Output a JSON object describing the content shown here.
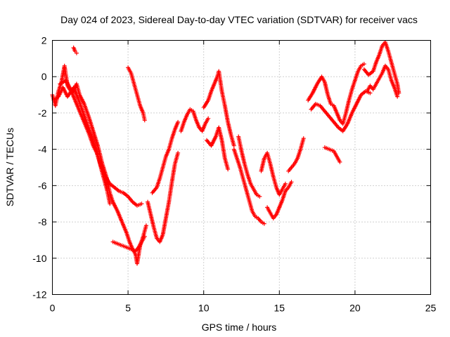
{
  "chart_data": {
    "type": "scatter",
    "title": "Day 024 of 2023, Sidereal Day-to-day VTEC variation (SDTVAR) for receiver vacs",
    "xlabel": "GPS time / hours",
    "ylabel": "SDTVAR / TECUs",
    "xlim": [
      0,
      25
    ],
    "ylim": [
      -12,
      2
    ],
    "grid": true,
    "x_ticks": [
      0,
      5,
      10,
      15,
      20,
      25
    ],
    "y_ticks": [
      -12,
      -10,
      -8,
      -6,
      -4,
      -2,
      0,
      2
    ],
    "marker": "+",
    "color": "#ff0000",
    "series": [
      {
        "name": "main-a",
        "points": [
          [
            0.0,
            -1.0
          ],
          [
            0.2,
            -1.6
          ],
          [
            0.4,
            -0.8
          ],
          [
            0.6,
            -0.3
          ],
          [
            0.8,
            0.6
          ],
          [
            1.0,
            -0.5
          ],
          [
            1.3,
            -0.9
          ],
          [
            1.6,
            -0.4
          ],
          [
            1.8,
            -1.0
          ],
          [
            2.1,
            -1.5
          ],
          [
            2.4,
            -2.2
          ],
          [
            2.7,
            -3.0
          ],
          [
            3.0,
            -3.8
          ],
          [
            3.3,
            -4.8
          ],
          [
            3.6,
            -5.6
          ],
          [
            3.8,
            -6.4
          ],
          [
            4.0,
            -6.9
          ],
          [
            4.3,
            -7.4
          ],
          [
            4.6,
            -8.0
          ],
          [
            4.9,
            -8.6
          ],
          [
            5.1,
            -9.1
          ],
          [
            5.3,
            -9.5
          ],
          [
            5.5,
            -9.8
          ],
          [
            5.6,
            -10.3
          ],
          [
            5.8,
            -9.3
          ],
          [
            6.0,
            -8.8
          ],
          [
            6.2,
            -8.2
          ]
        ]
      },
      {
        "name": "main-b",
        "points": [
          [
            0.1,
            -1.3
          ],
          [
            0.4,
            -1.1
          ],
          [
            0.7,
            -0.6
          ],
          [
            1.0,
            -1.1
          ],
          [
            1.4,
            -0.6
          ],
          [
            1.7,
            -1.2
          ],
          [
            2.0,
            -1.9
          ],
          [
            2.3,
            -2.6
          ],
          [
            2.6,
            -3.3
          ],
          [
            2.9,
            -4.1
          ],
          [
            3.2,
            -4.9
          ],
          [
            3.5,
            -5.5
          ],
          [
            3.8,
            -5.9
          ],
          [
            4.1,
            -6.1
          ],
          [
            4.4,
            -6.3
          ],
          [
            4.7,
            -6.4
          ],
          [
            5.0,
            -6.6
          ],
          [
            5.3,
            -6.9
          ],
          [
            5.6,
            -7.1
          ],
          [
            5.9,
            -7.0
          ]
        ]
      },
      {
        "name": "early-b",
        "points": [
          [
            0.5,
            -0.4
          ],
          [
            0.9,
            -0.2
          ],
          [
            1.2,
            -0.7
          ],
          [
            1.5,
            -1.3
          ],
          [
            1.8,
            -1.9
          ],
          [
            2.1,
            -2.5
          ],
          [
            2.4,
            -3.1
          ],
          [
            2.7,
            -3.8
          ],
          [
            3.0,
            -4.3
          ],
          [
            3.3,
            -5.3
          ],
          [
            3.6,
            -6.2
          ],
          [
            3.8,
            -7.0
          ]
        ]
      },
      {
        "name": "blip",
        "points": [
          [
            1.4,
            1.6
          ],
          [
            1.5,
            1.4
          ],
          [
            1.6,
            1.3
          ]
        ]
      },
      {
        "name": "seg-5h",
        "points": [
          [
            5.0,
            0.5
          ],
          [
            5.2,
            0.2
          ],
          [
            5.4,
            -0.4
          ],
          [
            5.6,
            -1.0
          ],
          [
            5.8,
            -1.6
          ],
          [
            6.0,
            -2.0
          ],
          [
            6.1,
            -2.4
          ]
        ]
      },
      {
        "name": "seg-9h",
        "points": [
          [
            4.0,
            -9.1
          ],
          [
            4.3,
            -9.2
          ],
          [
            4.6,
            -9.3
          ],
          [
            4.9,
            -9.4
          ],
          [
            5.2,
            -9.5
          ],
          [
            5.5,
            -9.6
          ],
          [
            5.7,
            -9.4
          ],
          [
            5.9,
            -9.1
          ],
          [
            6.1,
            -8.8
          ]
        ]
      },
      {
        "name": "valley-1",
        "points": [
          [
            6.3,
            -6.9
          ],
          [
            6.5,
            -7.6
          ],
          [
            6.7,
            -8.3
          ],
          [
            6.9,
            -8.9
          ],
          [
            7.1,
            -9.1
          ],
          [
            7.3,
            -8.7
          ],
          [
            7.5,
            -7.8
          ],
          [
            7.7,
            -6.9
          ],
          [
            7.9,
            -5.8
          ],
          [
            8.1,
            -4.8
          ],
          [
            8.3,
            -4.2
          ]
        ]
      },
      {
        "name": "valley-2",
        "points": [
          [
            6.6,
            -6.4
          ],
          [
            6.9,
            -6.1
          ],
          [
            7.1,
            -5.6
          ],
          [
            7.3,
            -5.0
          ],
          [
            7.5,
            -4.4
          ],
          [
            7.7,
            -4.0
          ],
          [
            7.9,
            -3.4
          ],
          [
            8.1,
            -2.9
          ],
          [
            8.3,
            -2.5
          ]
        ]
      },
      {
        "name": "hump-8h",
        "points": [
          [
            8.5,
            -3.0
          ],
          [
            8.7,
            -2.5
          ],
          [
            8.9,
            -2.1
          ],
          [
            9.1,
            -1.8
          ],
          [
            9.3,
            -1.9
          ],
          [
            9.5,
            -2.4
          ],
          [
            9.7,
            -2.8
          ],
          [
            9.9,
            -3.0
          ],
          [
            10.1,
            -2.6
          ],
          [
            10.3,
            -2.3
          ]
        ]
      },
      {
        "name": "ridge-10h",
        "points": [
          [
            10.0,
            -1.7
          ],
          [
            10.3,
            -1.3
          ],
          [
            10.5,
            -0.8
          ],
          [
            10.7,
            -0.4
          ],
          [
            10.9,
            0.0
          ],
          [
            11.0,
            0.3
          ],
          [
            11.2,
            -0.8
          ],
          [
            11.4,
            -1.6
          ],
          [
            11.6,
            -2.5
          ],
          [
            11.8,
            -3.2
          ],
          [
            12.0,
            -3.8
          ]
        ]
      },
      {
        "name": "ridge-10h-low",
        "points": [
          [
            10.2,
            -3.5
          ],
          [
            10.5,
            -3.8
          ],
          [
            10.8,
            -3.3
          ],
          [
            11.0,
            -2.8
          ],
          [
            11.2,
            -3.5
          ],
          [
            11.4,
            -4.5
          ],
          [
            11.6,
            -5.1
          ]
        ]
      },
      {
        "name": "drop-12h",
        "points": [
          [
            12.0,
            -4.0
          ],
          [
            12.2,
            -4.5
          ],
          [
            12.4,
            -5.0
          ],
          [
            12.6,
            -5.6
          ],
          [
            12.8,
            -6.2
          ],
          [
            13.0,
            -6.8
          ],
          [
            13.2,
            -7.4
          ],
          [
            13.4,
            -7.7
          ],
          [
            13.6,
            -7.8
          ],
          [
            13.8,
            -8.0
          ],
          [
            14.0,
            -8.1
          ]
        ]
      },
      {
        "name": "drop-12h-b",
        "points": [
          [
            12.3,
            -3.3
          ],
          [
            12.5,
            -4.1
          ],
          [
            12.7,
            -4.8
          ],
          [
            12.9,
            -5.4
          ],
          [
            13.1,
            -5.9
          ],
          [
            13.3,
            -6.2
          ],
          [
            13.5,
            -6.5
          ],
          [
            13.7,
            -6.6
          ]
        ]
      },
      {
        "name": "bowl-14h",
        "points": [
          [
            13.8,
            -5.2
          ],
          [
            14.0,
            -4.5
          ],
          [
            14.2,
            -4.2
          ],
          [
            14.4,
            -4.8
          ],
          [
            14.6,
            -5.5
          ],
          [
            14.8,
            -6.1
          ],
          [
            15.0,
            -6.5
          ],
          [
            15.2,
            -6.2
          ],
          [
            15.4,
            -5.9
          ]
        ]
      },
      {
        "name": "bowl-14h-low",
        "points": [
          [
            14.2,
            -7.2
          ],
          [
            14.4,
            -7.5
          ],
          [
            14.6,
            -7.8
          ],
          [
            14.8,
            -7.6
          ],
          [
            15.0,
            -7.2
          ],
          [
            15.2,
            -6.8
          ],
          [
            15.4,
            -6.3
          ],
          [
            15.6,
            -6.1
          ],
          [
            15.8,
            -5.8
          ]
        ]
      },
      {
        "name": "rise-16h",
        "points": [
          [
            15.6,
            -5.2
          ],
          [
            15.8,
            -5.0
          ],
          [
            16.0,
            -4.8
          ],
          [
            16.2,
            -4.5
          ],
          [
            16.4,
            -4.0
          ],
          [
            16.6,
            -3.4
          ]
        ]
      },
      {
        "name": "wave-17h",
        "points": [
          [
            16.9,
            -1.3
          ],
          [
            17.2,
            -0.9
          ],
          [
            17.5,
            -0.4
          ],
          [
            17.8,
            0.0
          ],
          [
            18.0,
            -0.3
          ],
          [
            18.2,
            -1.0
          ],
          [
            18.4,
            -1.5
          ],
          [
            18.6,
            -1.6
          ],
          [
            18.8,
            -2.0
          ],
          [
            19.0,
            -2.4
          ],
          [
            19.2,
            -2.6
          ],
          [
            19.4,
            -2.0
          ],
          [
            19.6,
            -1.3
          ],
          [
            19.8,
            -0.7
          ],
          [
            20.0,
            -0.2
          ],
          [
            20.2,
            0.3
          ],
          [
            20.4,
            0.6
          ],
          [
            20.6,
            0.7
          ]
        ]
      },
      {
        "name": "wave-17h-b",
        "points": [
          [
            17.1,
            -1.8
          ],
          [
            17.4,
            -1.5
          ],
          [
            17.7,
            -1.6
          ],
          [
            18.0,
            -1.9
          ],
          [
            18.3,
            -2.2
          ],
          [
            18.6,
            -2.5
          ],
          [
            18.9,
            -2.8
          ],
          [
            19.2,
            -3.0
          ],
          [
            19.5,
            -2.6
          ],
          [
            19.8,
            -2.0
          ],
          [
            20.1,
            -1.5
          ],
          [
            20.4,
            -1.0
          ],
          [
            20.7,
            -0.8
          ],
          [
            21.0,
            -0.9
          ]
        ]
      },
      {
        "name": "low-19h",
        "points": [
          [
            18.0,
            -3.9
          ],
          [
            18.3,
            -4.0
          ],
          [
            18.6,
            -4.1
          ],
          [
            18.8,
            -4.4
          ],
          [
            19.0,
            -4.7
          ]
        ]
      },
      {
        "name": "peak-21h",
        "points": [
          [
            20.6,
            0.4
          ],
          [
            20.9,
            0.1
          ],
          [
            21.2,
            0.3
          ],
          [
            21.4,
            0.8
          ],
          [
            21.6,
            1.2
          ],
          [
            21.8,
            1.7
          ],
          [
            22.0,
            1.9
          ],
          [
            22.2,
            1.4
          ],
          [
            22.4,
            0.8
          ],
          [
            22.6,
            0.2
          ],
          [
            22.8,
            -0.4
          ],
          [
            22.9,
            -0.9
          ]
        ]
      },
      {
        "name": "peak-21h-b",
        "points": [
          [
            20.8,
            -0.8
          ],
          [
            21.0,
            -0.5
          ],
          [
            21.2,
            -0.7
          ],
          [
            21.4,
            -0.4
          ],
          [
            21.6,
            -0.1
          ],
          [
            21.8,
            0.2
          ],
          [
            22.0,
            0.6
          ],
          [
            22.2,
            0.4
          ],
          [
            22.4,
            -0.2
          ],
          [
            22.6,
            -0.6
          ],
          [
            22.8,
            -1.1
          ]
        ]
      }
    ]
  }
}
